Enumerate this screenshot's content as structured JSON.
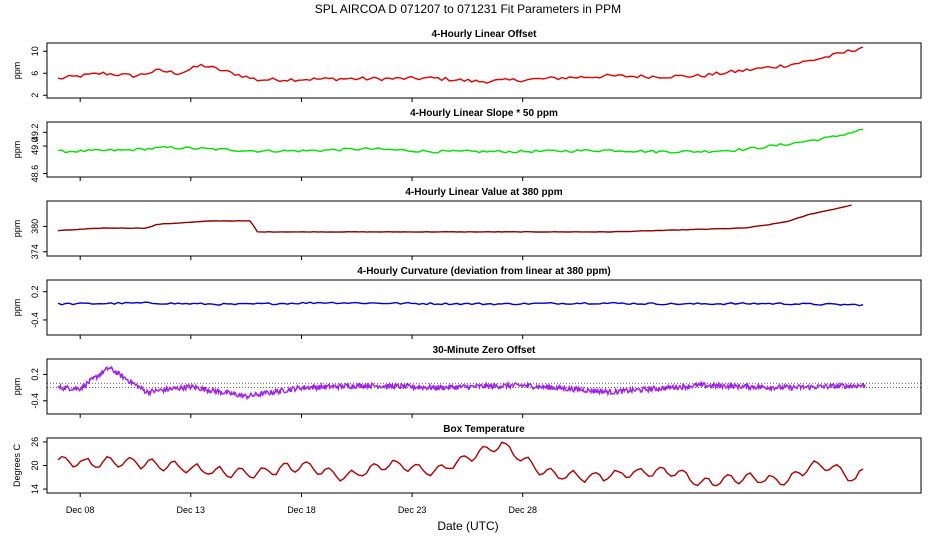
{
  "figure": {
    "title": "SPL   AIRCOA D   071207 to 071231   Fit Parameters in PPM",
    "xlabel": "Date (UTC)",
    "x_ticks": [
      "Dec 08",
      "Dec 13",
      "Dec 18",
      "Dec 23",
      "Dec 28"
    ]
  },
  "colors": {
    "offset": "#e00000",
    "slope": "#00e000",
    "value": "#8b0000",
    "curvature": "#0000c8",
    "zero": "#a020f0",
    "temp": "#b00000"
  },
  "chart_data": [
    {
      "type": "line",
      "title": "4-Hourly Linear Offset",
      "ylabel": "ppm",
      "y_ticks": [
        "2",
        "6",
        "10"
      ],
      "ylim": [
        1.5,
        11.5
      ],
      "x_unit": "days since Dec 08 00:00 UTC",
      "series": [
        {
          "x": [
            -1,
            1,
            2.5,
            3.5,
            4.5,
            5.5,
            8,
            10,
            12,
            14,
            16,
            18,
            20,
            22,
            24,
            26,
            28,
            29,
            30,
            31,
            32,
            33,
            34,
            35,
            35.5
          ],
          "values": [
            5.0,
            6.0,
            5.5,
            6.5,
            6.0,
            7.5,
            4.8,
            4.9,
            5.0,
            5.0,
            5.1,
            4.5,
            4.8,
            5.2,
            5.5,
            5.4,
            5.5,
            6.0,
            6.5,
            7.0,
            7.5,
            8.3,
            9.2,
            10.3,
            11.0
          ]
        }
      ]
    },
    {
      "type": "line",
      "title": "4-Hourly Linear Slope * 50 ppm",
      "ylabel": "ppm",
      "y_ticks": [
        "48.6",
        "49.0",
        "49.2"
      ],
      "ylim": [
        48.55,
        49.35
      ],
      "x_unit": "days since Dec 08 00:00 UTC",
      "series": [
        {
          "x": [
            -1,
            2,
            4,
            8,
            10,
            13,
            16,
            20,
            24,
            26,
            28,
            30,
            32,
            34,
            35.5
          ],
          "values": [
            48.92,
            48.94,
            48.98,
            48.93,
            48.93,
            48.96,
            48.92,
            48.92,
            48.94,
            48.92,
            48.92,
            48.95,
            49.03,
            49.13,
            49.25
          ]
        }
      ]
    },
    {
      "type": "line",
      "title": "4-Hourly Linear Value at 380 ppm",
      "ylabel": "ppm",
      "y_ticks": [
        "374",
        "380"
      ],
      "ylim": [
        373,
        386
      ],
      "x_unit": "days since Dec 08 00:00 UTC",
      "series": [
        {
          "x": [
            -1,
            1,
            3,
            3.5,
            6,
            7.7,
            8,
            12,
            16,
            20,
            24,
            28,
            30,
            31,
            32,
            33,
            34,
            35
          ],
          "values": [
            379.0,
            379.6,
            379.6,
            380.5,
            381.3,
            381.3,
            378.7,
            378.7,
            378.7,
            378.7,
            378.7,
            379.3,
            379.6,
            380.3,
            381.2,
            382.9,
            384.0,
            385.2
          ]
        }
      ]
    },
    {
      "type": "line",
      "title": "4-Hourly Curvature (deviation from linear at 380 ppm)",
      "ylabel": "ppm",
      "y_ticks": [
        "-0.4",
        "0.2"
      ],
      "ylim": [
        -0.72,
        0.45
      ],
      "x_unit": "days since Dec 08 00:00 UTC",
      "series": [
        {
          "x": [
            -1,
            3,
            7,
            11,
            15,
            19,
            23,
            27,
            31,
            35.5
          ],
          "values": [
            -0.06,
            -0.04,
            -0.07,
            -0.03,
            -0.05,
            -0.06,
            -0.04,
            -0.06,
            -0.05,
            -0.08
          ]
        }
      ]
    },
    {
      "type": "line",
      "title": "30-Minute Zero Offset",
      "ylabel": "ppm",
      "y_ticks": [
        "-0.4",
        "0.2"
      ],
      "ylim": [
        -0.7,
        0.55
      ],
      "x_unit": "days since Dec 08 00:00 UTC",
      "series": [
        {
          "x": [
            -1,
            0,
            1.3,
            3,
            5,
            7.5,
            10,
            13,
            16,
            20,
            24,
            28,
            32,
            35.5
          ],
          "values": [
            -0.1,
            -0.12,
            0.35,
            -0.2,
            -0.08,
            -0.3,
            -0.1,
            -0.05,
            -0.1,
            -0.05,
            -0.2,
            -0.05,
            -0.1,
            -0.05
          ]
        }
      ]
    },
    {
      "type": "line",
      "title": "Box Temperature",
      "ylabel": "Degrees C",
      "y_ticks": [
        "14",
        "20",
        "26"
      ],
      "ylim": [
        13,
        27
      ],
      "x_unit": "days since Dec 08 00:00 UTC",
      "series": [
        {
          "x": [
            -1,
            0.2,
            2,
            4,
            6,
            8,
            10,
            12,
            14,
            16,
            17.5,
            19,
            21,
            23,
            25,
            27,
            28,
            30,
            32,
            33,
            34,
            35,
            35.5
          ],
          "values": [
            21.5,
            20.5,
            21.0,
            20.0,
            18.5,
            18.0,
            20.0,
            17.0,
            20.5,
            18.5,
            22.0,
            25.5,
            18.0,
            17.0,
            18.0,
            18.5,
            15.5,
            17.0,
            16.0,
            20.0,
            19.5,
            16.5,
            18.5
          ]
        }
      ]
    }
  ]
}
